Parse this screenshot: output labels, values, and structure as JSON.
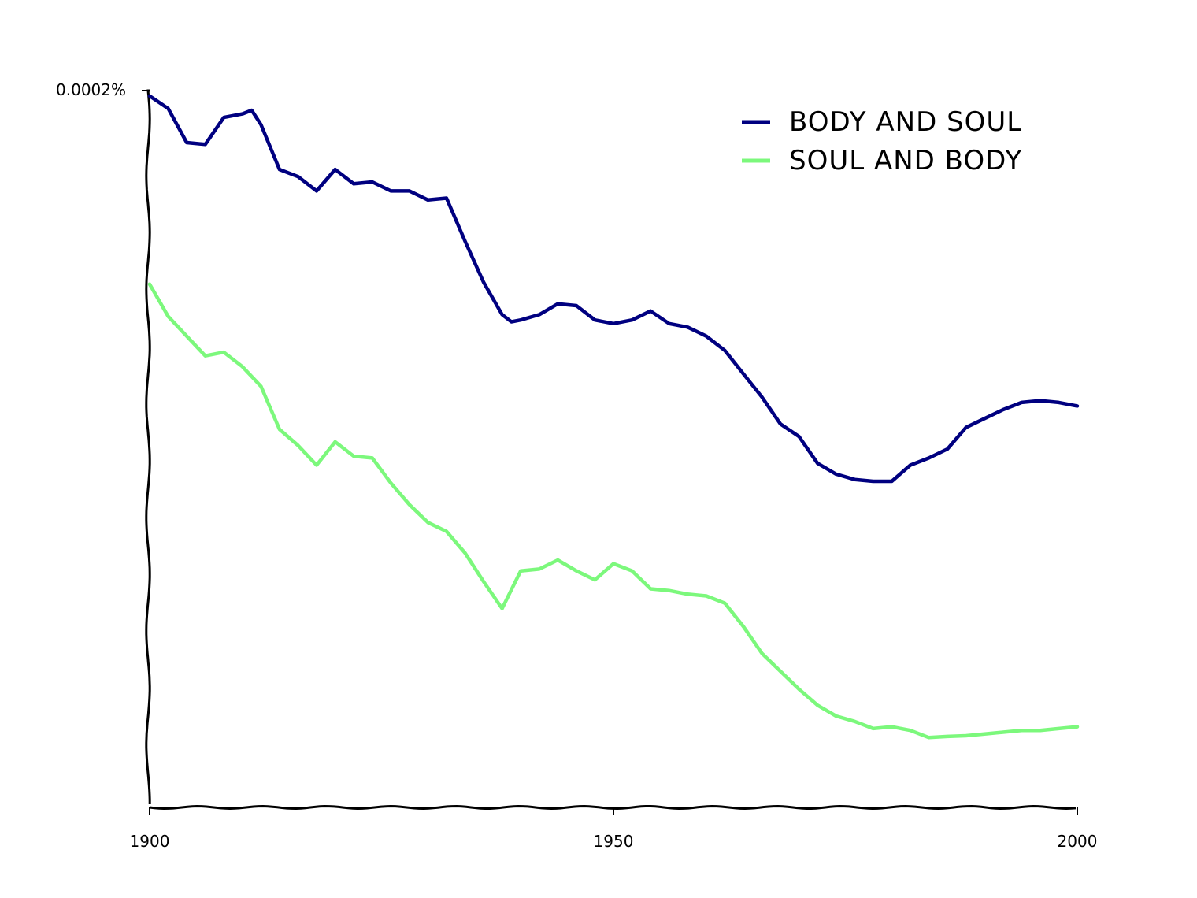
{
  "chart_data": {
    "type": "line",
    "title": "",
    "xlabel": "",
    "ylabel": "",
    "xlim": [
      1900,
      2000
    ],
    "ylim": [
      0,
      0.0002
    ],
    "x_ticks": [
      "1900",
      "1950",
      "2000"
    ],
    "y_ticks": [
      "0.0002%"
    ],
    "legend_position": "top-right",
    "series": [
      {
        "name": "BODY AND SOUL",
        "color": "#000080",
        "x": [
          1900,
          1902,
          1904,
          1906,
          1908,
          1910,
          1911,
          1912,
          1914,
          1916,
          1918,
          1920,
          1922,
          1924,
          1926,
          1928,
          1930,
          1932,
          1934,
          1936,
          1938,
          1939,
          1940,
          1942,
          1944,
          1946,
          1948,
          1950,
          1952,
          1954,
          1956,
          1958,
          1960,
          1962,
          1964,
          1966,
          1968,
          1970,
          1972,
          1974,
          1976,
          1978,
          1980,
          1982,
          1984,
          1986,
          1988,
          1990,
          1992,
          1994,
          1996,
          1998,
          2000
        ],
        "y": [
          0.0001985,
          0.000195,
          0.0001855,
          0.000185,
          0.0001925,
          0.0001935,
          0.0001945,
          0.0001905,
          0.000178,
          0.000176,
          0.000172,
          0.000178,
          0.000174,
          0.0001745,
          0.000172,
          0.000172,
          0.0001695,
          0.00017,
          0.000158,
          0.0001465,
          0.0001375,
          0.0001355,
          0.000136,
          0.0001375,
          0.0001405,
          0.00014,
          0.000136,
          0.000135,
          0.000136,
          0.0001385,
          0.000135,
          0.000134,
          0.0001315,
          0.0001275,
          0.000121,
          0.0001145,
          0.000107,
          0.0001035,
          9.6e-05,
          9.3e-05,
          9.15e-05,
          9.1e-05,
          9.1e-05,
          9.55e-05,
          9.75e-05,
          0.0001,
          0.000106,
          0.0001085,
          0.000111,
          0.000113,
          0.0001135,
          0.000113,
          0.000112
        ]
      },
      {
        "name": "SOUL AND BODY",
        "color": "#7CF87C",
        "x": [
          1900,
          1902,
          1904,
          1906,
          1908,
          1910,
          1912,
          1914,
          1916,
          1918,
          1920,
          1922,
          1924,
          1926,
          1928,
          1930,
          1932,
          1934,
          1936,
          1938,
          1940,
          1942,
          1944,
          1946,
          1948,
          1950,
          1952,
          1954,
          1956,
          1958,
          1960,
          1962,
          1964,
          1966,
          1968,
          1970,
          1972,
          1974,
          1976,
          1978,
          1980,
          1982,
          1984,
          1986,
          1988,
          1990,
          1992,
          1994,
          1996,
          1998,
          2000
        ],
        "y": [
          0.000146,
          0.000137,
          0.0001315,
          0.000126,
          0.000127,
          0.000123,
          0.0001175,
          0.0001055,
          0.000101,
          9.55e-05,
          0.000102,
          9.8e-05,
          9.75e-05,
          9.05e-05,
          8.45e-05,
          7.95e-05,
          7.7e-05,
          7.1e-05,
          6.3e-05,
          5.55e-05,
          6.6e-05,
          6.65e-05,
          6.9e-05,
          6.6e-05,
          6.35e-05,
          6.8e-05,
          6.6e-05,
          6.1e-05,
          6.05e-05,
          5.95e-05,
          5.9e-05,
          5.7e-05,
          5.05e-05,
          4.3e-05,
          3.8e-05,
          3.3e-05,
          2.85e-05,
          2.55e-05,
          2.4e-05,
          2.2e-05,
          2.25e-05,
          2.15e-05,
          1.95e-05,
          1.98e-05,
          2e-05,
          2.05e-05,
          2.1e-05,
          2.15e-05,
          2.15e-05,
          2.2e-05,
          2.25e-05
        ]
      }
    ]
  }
}
